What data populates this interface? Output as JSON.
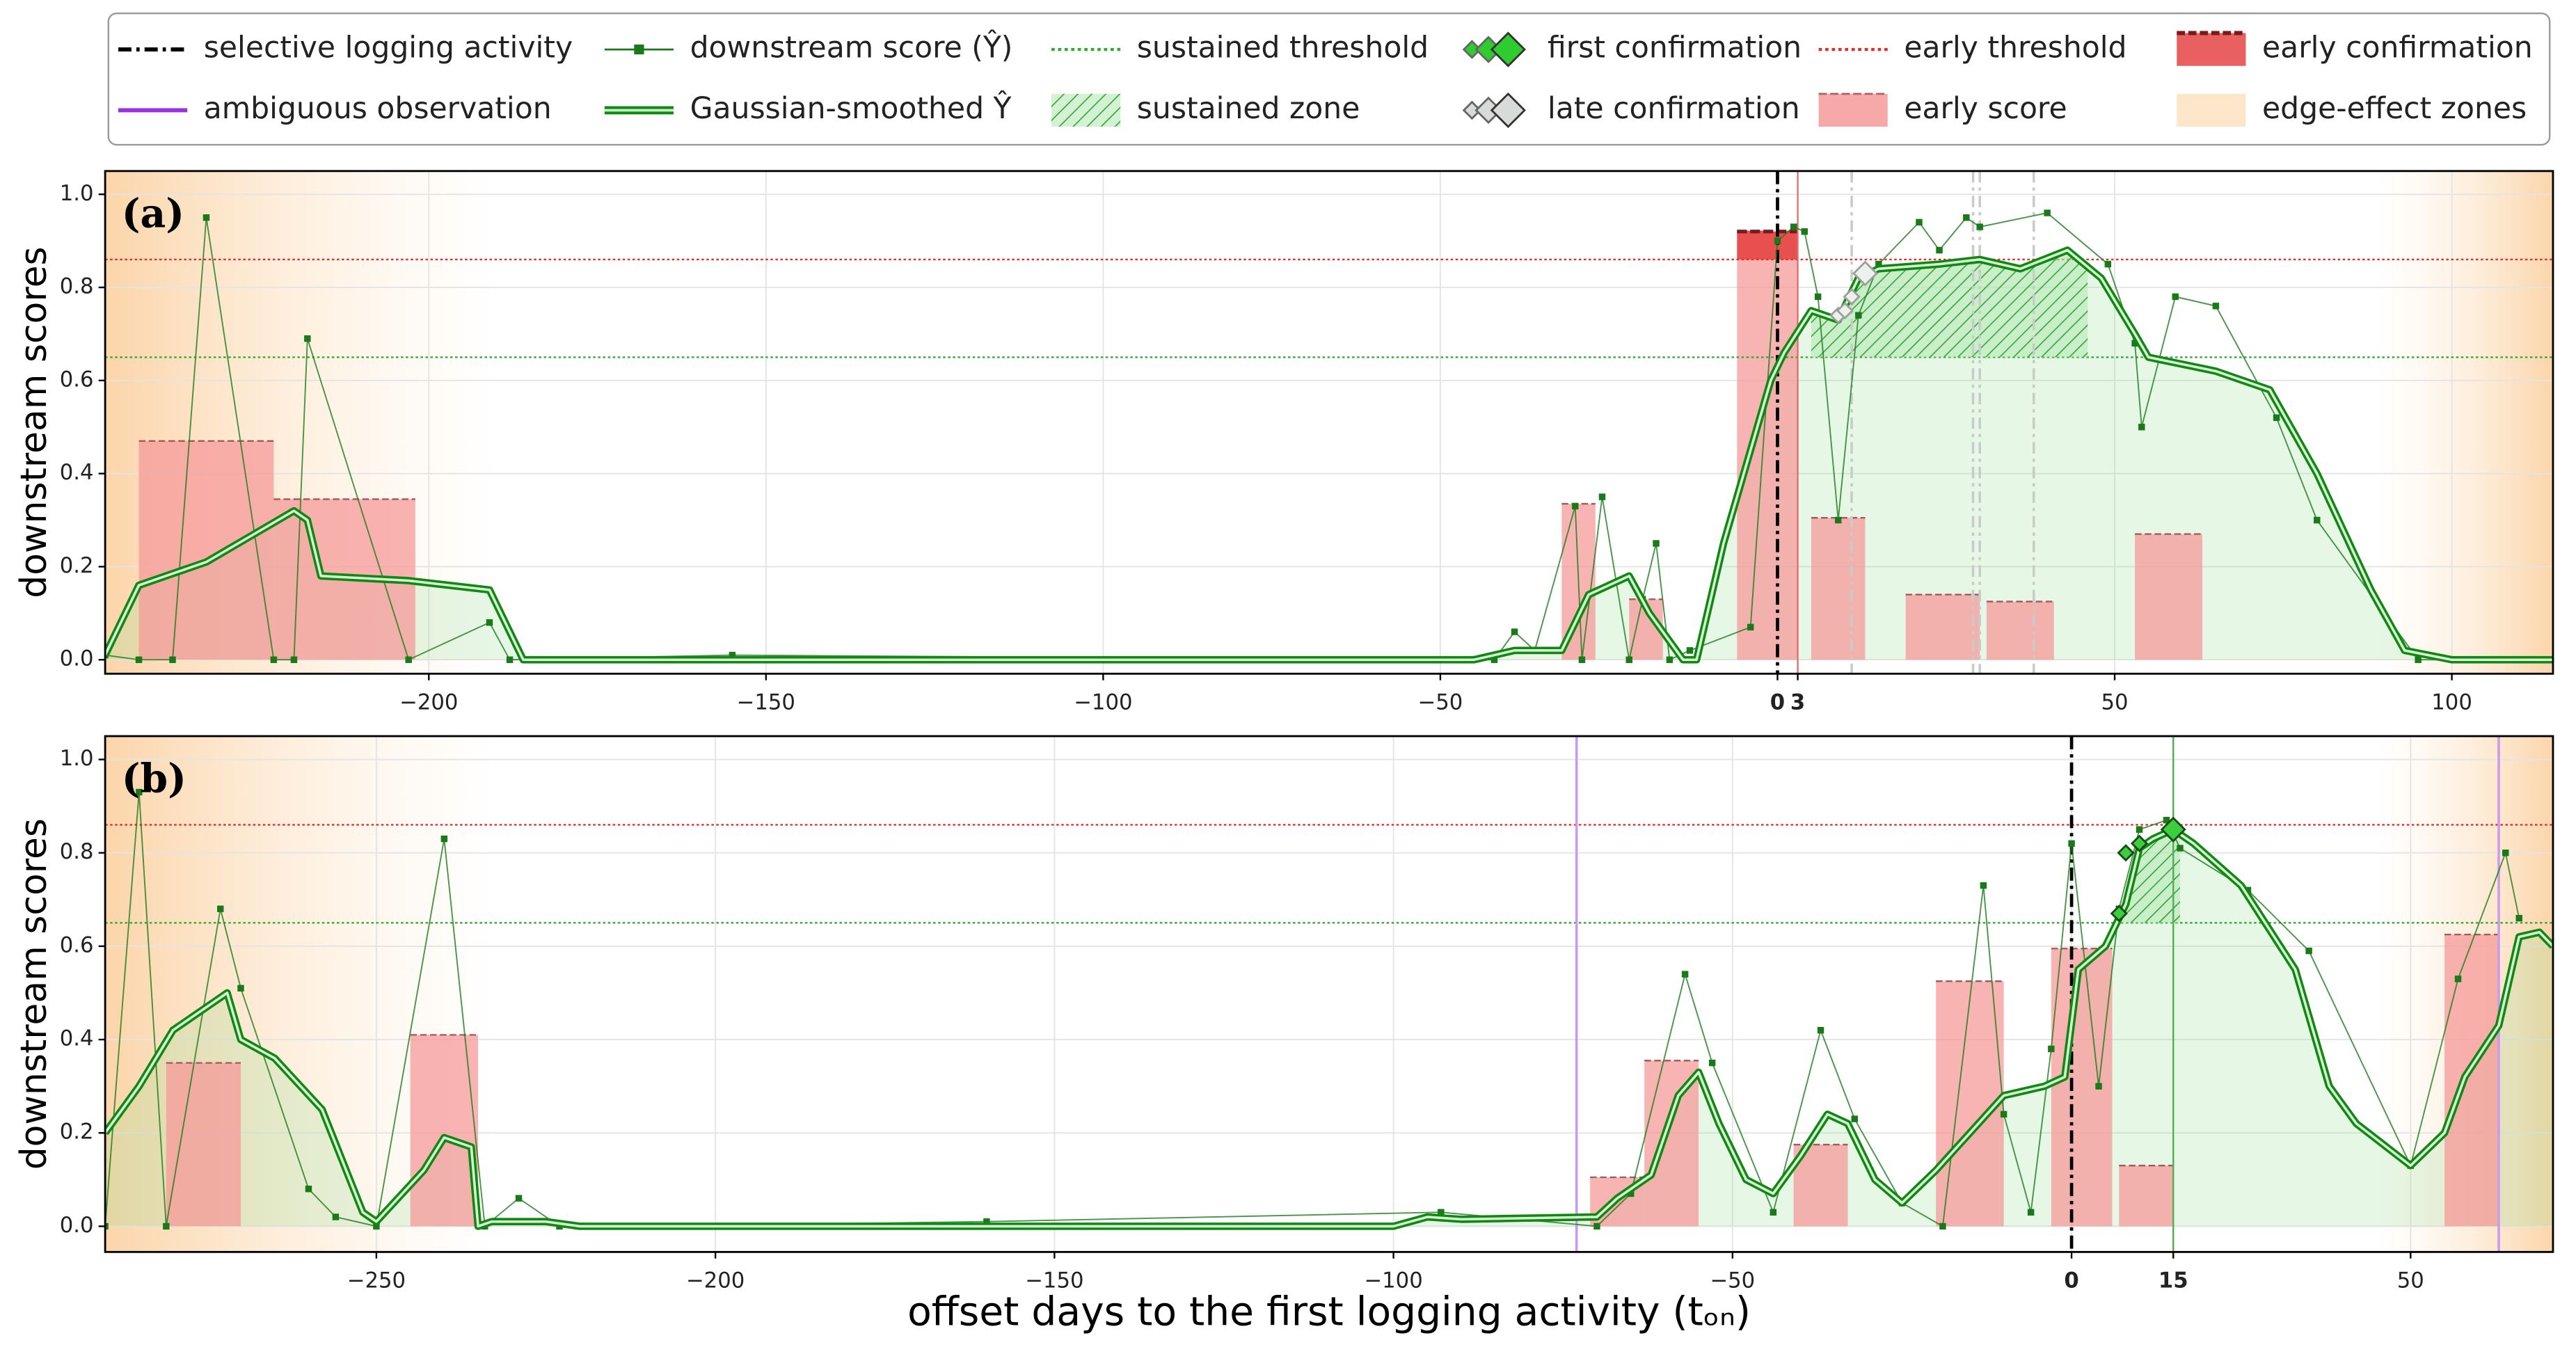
{
  "legend": [
    {
      "label": "selective logging activity",
      "kind": "dashdot",
      "color": "#000000"
    },
    {
      "label": "downstream score (Ŷ)",
      "kind": "line-marker",
      "color": "#1a7a1a"
    },
    {
      "label": "sustained threshold",
      "kind": "dotted",
      "color": "#33aa33"
    },
    {
      "label": "first confirmation",
      "kind": "diamonds",
      "color": "#2ecc2e"
    },
    {
      "label": "early threshold",
      "kind": "dotted",
      "color": "#e03030"
    },
    {
      "label": "early confirmation",
      "kind": "bar-dark",
      "color": "#e86060"
    },
    {
      "label": "ambiguous observation",
      "kind": "line",
      "color": "#9b30e0"
    },
    {
      "label": "Gaussian-smoothed Ŷ",
      "kind": "double",
      "color": "#118811"
    },
    {
      "label": "sustained zone",
      "kind": "hatch",
      "color": "#33aa33"
    },
    {
      "label": "late confirmation",
      "kind": "diamonds",
      "color": "#d8dcd8"
    },
    {
      "label": "early score",
      "kind": "bar",
      "color": "#f7a8a8"
    },
    {
      "label": "edge-effect zones",
      "kind": "edge",
      "color": "#fbd5a5"
    }
  ],
  "xlabel": "offset days to the first logging activity (tₒₙ)",
  "chart_data": [
    {
      "type": "line",
      "panel_label": "(a)",
      "ylabel": "downstream scores",
      "xlim": [
        -248,
        115
      ],
      "ylim": [
        -0.03,
        1.05
      ],
      "xticks": [
        {
          "value": -200,
          "label": "−200"
        },
        {
          "value": -150,
          "label": "−150"
        },
        {
          "value": -100,
          "label": "−100"
        },
        {
          "value": -50,
          "label": "−50"
        },
        50,
        100
      ],
      "highlight_xticks": [
        0,
        3
      ],
      "highlight_colors": [
        "#000000",
        "#c0392b"
      ],
      "yticks": [
        {
          "value": 0,
          "label": "0.0"
        },
        {
          "value": 0.2,
          "label": "0.2"
        },
        {
          "value": 0.4,
          "label": "0.4"
        },
        {
          "value": 0.6,
          "label": "0.6"
        },
        {
          "value": 0.8,
          "label": "0.8"
        },
        {
          "value": 1,
          "label": "1.0"
        }
      ],
      "grid": true,
      "onset": 0,
      "confirmation_day": 3,
      "confirmation_color": "#e07070",
      "early_threshold": 0.86,
      "sustained_threshold": 0.65,
      "sustained_zone": [
        5,
        46
      ],
      "series": [
        {
          "name": "downstream score (Ŷ)",
          "color": "#1a7a1a",
          "x": [
            -248,
            -243,
            -238,
            -233,
            -223,
            -220,
            -218,
            -203,
            -191,
            -188,
            -155,
            -57,
            -42,
            -39,
            -36,
            -30,
            -29,
            -26,
            -22,
            -20,
            -18,
            -16,
            -13,
            -4,
            0,
            2.4,
            4,
            6,
            9,
            12,
            15,
            21,
            24,
            28,
            30,
            40,
            49,
            53,
            54,
            59,
            65,
            74,
            80,
            95,
            113
          ],
          "values": [
            0.01,
            0,
            0,
            0.95,
            0,
            0,
            0.69,
            0,
            0.08,
            0,
            0.01,
            0,
            0,
            0.06,
            0.02,
            0.33,
            0,
            0.35,
            0,
            0.13,
            0.25,
            0,
            0.02,
            0.07,
            0.9,
            0.93,
            0.92,
            0.78,
            0.3,
            0.74,
            0.85,
            0.94,
            0.88,
            0.95,
            0.93,
            0.96,
            0.85,
            0.68,
            0.5,
            0.78,
            0.76,
            0.52,
            0.3,
            0,
            0
          ]
        },
        {
          "name": "Gaussian-smoothed Ŷ",
          "color": "#118811",
          "x": [
            -248,
            -243,
            -233,
            -220,
            -218,
            -216,
            -203,
            -191,
            -186,
            -45,
            -39,
            -32,
            -28,
            -22,
            -19,
            -14,
            -12,
            -8,
            -4,
            -1,
            1,
            5,
            9,
            12,
            15,
            24,
            30,
            36,
            43,
            48,
            53,
            55,
            65,
            73,
            80,
            88,
            93,
            100,
            115
          ],
          "values": [
            0.01,
            0.16,
            0.21,
            0.32,
            0.3,
            0.18,
            0.17,
            0.15,
            0,
            0,
            0.02,
            0.02,
            0.14,
            0.18,
            0.1,
            0,
            0,
            0.25,
            0.45,
            0.6,
            0.66,
            0.75,
            0.73,
            0.82,
            0.84,
            0.85,
            0.86,
            0.84,
            0.88,
            0.82,
            0.7,
            0.65,
            0.62,
            0.58,
            0.4,
            0.15,
            0.02,
            0,
            0
          ]
        }
      ],
      "early_score": {
        "x0": [
          -243,
          -223,
          -32,
          -22,
          -6,
          5,
          19,
          31,
          53
        ],
        "x1": [
          -223,
          -202,
          -27,
          -17,
          3,
          13,
          30,
          41,
          63
        ],
        "values": [
          0.47,
          0.345,
          0.335,
          0.13,
          0.92,
          0.305,
          0.14,
          0.125,
          0.27
        ]
      },
      "early_confirmation": {
        "x0": -6,
        "x1": 3,
        "value": 0.92
      },
      "late_confirmation": {
        "x": [
          9,
          10,
          11,
          13
        ],
        "values": [
          0.74,
          0.75,
          0.78,
          0.83
        ]
      },
      "late_lines": [
        11,
        29,
        30,
        38
      ]
    },
    {
      "type": "line",
      "panel_label": "(b)",
      "ylabel": "downstream scores",
      "xlim": [
        -290,
        71
      ],
      "ylim": [
        -0.055,
        1.05
      ],
      "xticks": [
        {
          "value": -250,
          "label": "−250"
        },
        {
          "value": -200,
          "label": "−200"
        },
        {
          "value": -150,
          "label": "−150"
        },
        {
          "value": -100,
          "label": "−100"
        },
        {
          "value": -50,
          "label": "−50"
        },
        50
      ],
      "highlight_xticks": [
        0,
        15
      ],
      "highlight_colors": [
        "#000000",
        "#2e7d32"
      ],
      "yticks": [
        {
          "value": 0,
          "label": "0.0"
        },
        {
          "value": 0.2,
          "label": "0.2"
        },
        {
          "value": 0.4,
          "label": "0.4"
        },
        {
          "value": 0.6,
          "label": "0.6"
        },
        {
          "value": 0.8,
          "label": "0.8"
        },
        {
          "value": 1,
          "label": "1.0"
        }
      ],
      "grid": true,
      "onset": 0,
      "confirmation_day": 15,
      "confirmation_color": "#55aa55",
      "early_threshold": 0.86,
      "sustained_threshold": 0.65,
      "sustained_zone": [
        7,
        16
      ],
      "series": [
        {
          "name": "downstream score (Ŷ)",
          "color": "#1a7a1a",
          "x": [
            -290,
            -285,
            -281,
            -273,
            -270,
            -260,
            -256,
            -250,
            -240,
            -234,
            -229,
            -223,
            -210,
            -160,
            -93,
            -70,
            -65,
            -57,
            -53,
            -44,
            -37,
            -32,
            -25,
            -19,
            -13,
            -10,
            -6,
            -3,
            0,
            4,
            7,
            10,
            14,
            16,
            26,
            35,
            50,
            57,
            64,
            66
          ],
          "values": [
            0,
            0.93,
            0,
            0.68,
            0.51,
            0.08,
            0.02,
            0,
            0.83,
            0,
            0.06,
            0,
            0,
            0.01,
            0.03,
            0,
            0.07,
            0.54,
            0.35,
            0.03,
            0.42,
            0.23,
            0.05,
            0,
            0.73,
            0.24,
            0.03,
            0.38,
            0.82,
            0.3,
            0.68,
            0.85,
            0.87,
            0.81,
            0.72,
            0.59,
            0.13,
            0.53,
            0.8,
            0.66
          ]
        },
        {
          "name": "Gaussian-smoothed Ŷ",
          "color": "#118811",
          "x": [
            -290,
            -285,
            -280,
            -272,
            -270,
            -265,
            -258,
            -252,
            -250,
            -243,
            -240,
            -236,
            -235,
            -233,
            -225,
            -220,
            -100,
            -95,
            -90,
            -70,
            -67,
            -62,
            -58,
            -55,
            -52,
            -48,
            -44,
            -40,
            -36,
            -33,
            -29,
            -25,
            -20,
            -15,
            -10,
            -4,
            -1,
            1,
            5,
            8,
            10,
            12,
            15,
            18,
            25,
            33,
            38,
            42,
            50,
            55,
            58,
            63,
            66,
            69,
            71
          ],
          "values": [
            0.2,
            0.3,
            0.42,
            0.5,
            0.4,
            0.36,
            0.25,
            0.03,
            0.01,
            0.12,
            0.19,
            0.17,
            0,
            0.01,
            0.01,
            0,
            0,
            0.02,
            0.015,
            0.02,
            0.06,
            0.11,
            0.28,
            0.33,
            0.22,
            0.1,
            0.07,
            0.15,
            0.24,
            0.22,
            0.1,
            0.05,
            0.12,
            0.2,
            0.28,
            0.3,
            0.32,
            0.55,
            0.6,
            0.69,
            0.81,
            0.83,
            0.85,
            0.82,
            0.73,
            0.55,
            0.3,
            0.22,
            0.13,
            0.2,
            0.32,
            0.43,
            0.62,
            0.63,
            0.6
          ]
        }
      ],
      "early_score": {
        "x0": [
          -281,
          -245,
          -71,
          -63,
          -41,
          -20,
          -3,
          7,
          55
        ],
        "x1": [
          -270,
          -235,
          -63,
          -55,
          -33,
          -10,
          6,
          15,
          63
        ],
        "values": [
          0.35,
          0.41,
          0.105,
          0.355,
          0.175,
          0.525,
          0.595,
          0.13,
          0.625
        ]
      },
      "first_confirmation": {
        "x": [
          7,
          8,
          10,
          15
        ],
        "values": [
          0.67,
          0.8,
          0.82,
          0.85
        ]
      },
      "ambiguous_observations": [
        -73,
        63
      ]
    }
  ]
}
